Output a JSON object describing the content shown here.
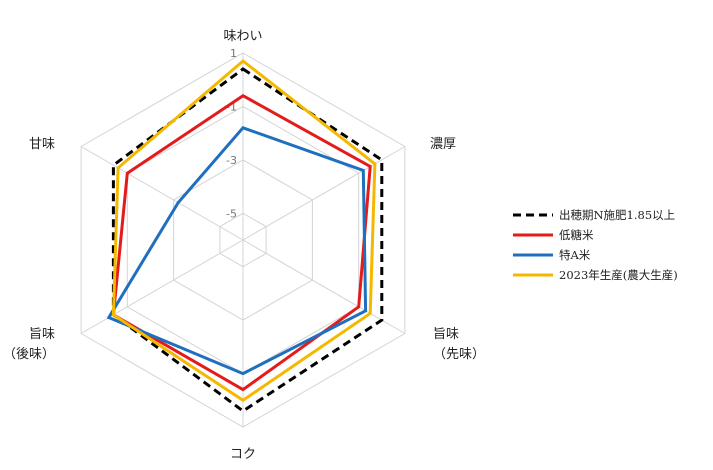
{
  "chart_data": {
    "type": "radar",
    "axes": [
      "味わい",
      "濃厚",
      "旨味\n（先味）",
      "コク",
      "旨味\n（後味）",
      "甘味"
    ],
    "rmin": -6,
    "rmax": 1,
    "ticks": [
      1,
      -1,
      -3,
      -5
    ],
    "tick_labels": [
      "1",
      "-1",
      "-3",
      "-5"
    ],
    "grid_levels": [
      1,
      -1,
      -3,
      -5
    ],
    "legend_position": "right",
    "series": [
      {
        "name": "出穂期N施肥1.85以上",
        "color": "#000000",
        "dashed": true,
        "values": [
          0.4,
          0.0,
          0.0,
          0.4,
          -0.4,
          -0.4
        ]
      },
      {
        "name": "低糖米",
        "color": "#e41b1b",
        "dashed": false,
        "values": [
          -0.6,
          -0.5,
          -1.0,
          -0.4,
          -0.4,
          -1.0
        ]
      },
      {
        "name": "特A米",
        "color": "#1f6fbf",
        "dashed": false,
        "values": [
          -1.8,
          -0.8,
          -0.7,
          -1.0,
          -0.2,
          -3.2
        ]
      },
      {
        "name": "2023年生産(農大生産)",
        "color": "#f5b800",
        "dashed": false,
        "values": [
          0.7,
          -0.3,
          -0.5,
          0.0,
          -0.4,
          -0.6
        ]
      }
    ]
  }
}
